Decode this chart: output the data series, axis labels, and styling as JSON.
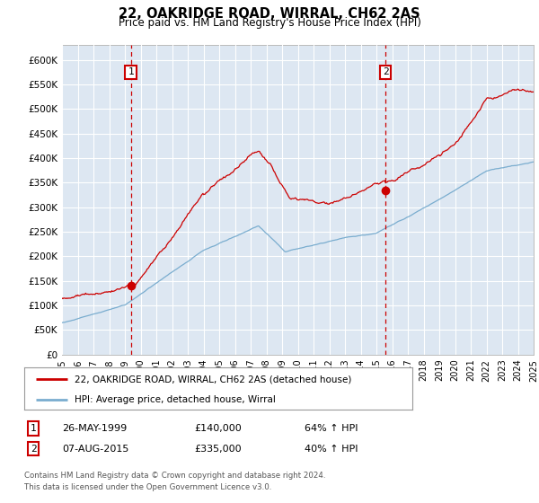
{
  "title": "22, OAKRIDGE ROAD, WIRRAL, CH62 2AS",
  "subtitle": "Price paid vs. HM Land Registry's House Price Index (HPI)",
  "ylabel_ticks": [
    "£0",
    "£50K",
    "£100K",
    "£150K",
    "£200K",
    "£250K",
    "£300K",
    "£350K",
    "£400K",
    "£450K",
    "£500K",
    "£550K",
    "£600K"
  ],
  "ytick_values": [
    0,
    50000,
    100000,
    150000,
    200000,
    250000,
    300000,
    350000,
    400000,
    450000,
    500000,
    550000,
    600000
  ],
  "xmin_year": 1995,
  "xmax_year": 2025,
  "sale1_date": 1999.38,
  "sale1_price": 140000,
  "sale1_label": "1",
  "sale1_text": "26-MAY-1999",
  "sale1_amount": "£140,000",
  "sale1_pct": "64% ↑ HPI",
  "sale2_date": 2015.58,
  "sale2_price": 335000,
  "sale2_label": "2",
  "sale2_text": "07-AUG-2015",
  "sale2_amount": "£335,000",
  "sale2_pct": "40% ↑ HPI",
  "red_line_color": "#cc0000",
  "blue_line_color": "#7aadcf",
  "bg_plot_color": "#dde7f2",
  "grid_color": "#ffffff",
  "vline_color": "#cc0000",
  "box_color": "#cc0000",
  "legend_line1": "22, OAKRIDGE ROAD, WIRRAL, CH62 2AS (detached house)",
  "legend_line2": "HPI: Average price, detached house, Wirral",
  "footer": "Contains HM Land Registry data © Crown copyright and database right 2024.\nThis data is licensed under the Open Government Licence v3.0.",
  "xtick_years": [
    1995,
    1996,
    1997,
    1998,
    1999,
    2000,
    2001,
    2002,
    2003,
    2004,
    2005,
    2006,
    2007,
    2008,
    2009,
    2010,
    2011,
    2012,
    2013,
    2014,
    2015,
    2016,
    2017,
    2018,
    2019,
    2020,
    2021,
    2022,
    2023,
    2024,
    2025
  ]
}
